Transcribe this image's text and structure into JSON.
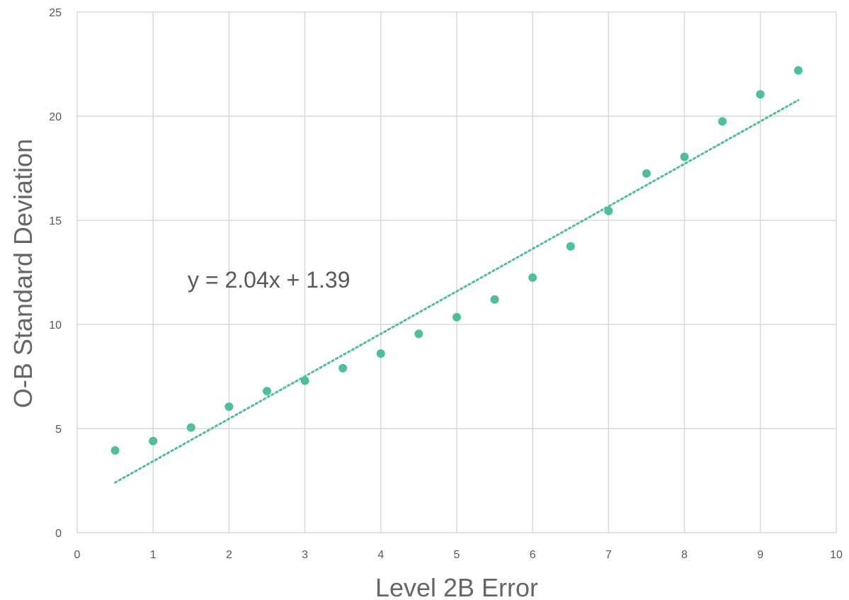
{
  "chart_data": {
    "type": "scatter",
    "title": "",
    "xlabel": "Level 2B Error",
    "ylabel": "O-B  Standard Deviation",
    "xlim": [
      0,
      10
    ],
    "ylim": [
      0,
      25
    ],
    "x_ticks": [
      0,
      1,
      2,
      3,
      4,
      5,
      6,
      7,
      8,
      9,
      10
    ],
    "y_ticks": [
      0,
      5,
      10,
      15,
      20,
      25
    ],
    "grid": true,
    "legend": "none",
    "series": [
      {
        "color": "#4dbf9f",
        "points": [
          {
            "x": 0.5,
            "y": 3.95
          },
          {
            "x": 1.0,
            "y": 4.4
          },
          {
            "x": 1.5,
            "y": 5.05
          },
          {
            "x": 2.0,
            "y": 6.05
          },
          {
            "x": 2.5,
            "y": 6.8
          },
          {
            "x": 3.0,
            "y": 7.3
          },
          {
            "x": 3.5,
            "y": 7.9
          },
          {
            "x": 4.0,
            "y": 8.6
          },
          {
            "x": 4.5,
            "y": 9.55
          },
          {
            "x": 5.0,
            "y": 10.35
          },
          {
            "x": 5.5,
            "y": 11.2
          },
          {
            "x": 6.0,
            "y": 12.25
          },
          {
            "x": 6.5,
            "y": 13.75
          },
          {
            "x": 7.0,
            "y": 15.45
          },
          {
            "x": 7.5,
            "y": 17.25
          },
          {
            "x": 8.0,
            "y": 18.05
          },
          {
            "x": 8.5,
            "y": 19.75
          },
          {
            "x": 9.0,
            "y": 21.05
          },
          {
            "x": 9.5,
            "y": 22.2
          }
        ]
      }
    ],
    "trendline": {
      "type": "linear",
      "style": "dotted",
      "color": "#4dbf9f",
      "slope": 2.04,
      "intercept": 1.39,
      "x_range": [
        0.5,
        9.5
      ],
      "equation_label": "y = 2.04x + 1.39"
    },
    "colors": {
      "grid": "#d9d9d9",
      "tick_text": "#595959",
      "axis_title": "#666666"
    }
  }
}
